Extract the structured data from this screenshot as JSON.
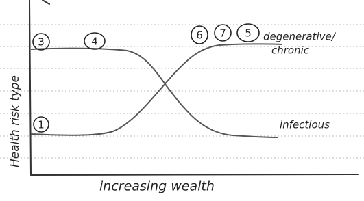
{
  "y_axis_label": "Health risk type",
  "x_axis_label": "increasing  wealth",
  "curve_labels": [
    "degenerative/",
    "chronic",
    "infectious"
  ],
  "markers": [
    "3",
    "4",
    "6",
    "7",
    "5",
    "1"
  ]
}
